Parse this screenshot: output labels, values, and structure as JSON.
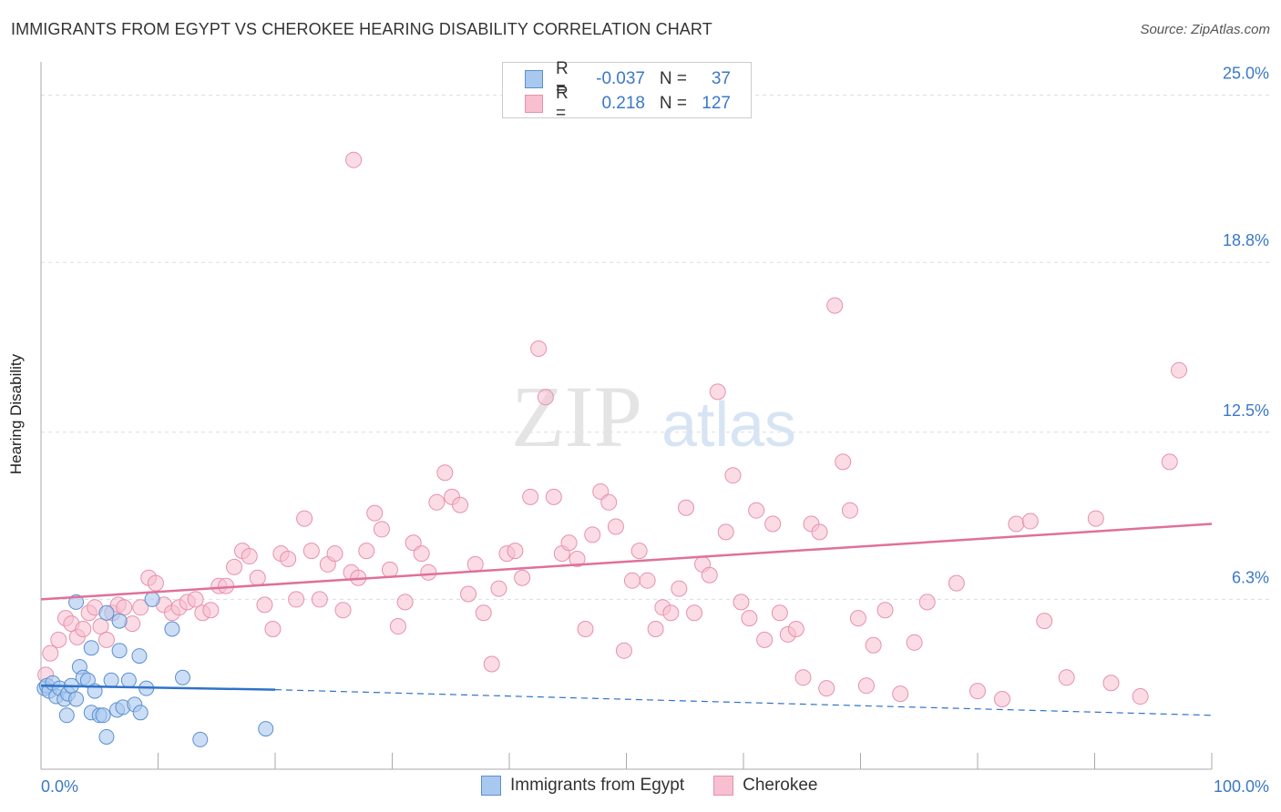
{
  "header": {
    "title": "IMMIGRANTS FROM EGYPT VS CHEROKEE HEARING DISABILITY CORRELATION CHART",
    "source": "Source: ZipAtlas.com"
  },
  "colors": {
    "egypt_fill": "#a9c8ef",
    "egypt_stroke": "#5b8fd0",
    "egypt_line": "#2f72c8",
    "cherokee_fill": "#f7bfd0",
    "cherokee_stroke": "#e691ad",
    "cherokee_line": "#e0709a",
    "value_text": "#3b78c8",
    "grid": "#dddddd"
  },
  "legend": {
    "rows": [
      {
        "r_label": "R =",
        "r_value": "-0.037",
        "n_label": "N =",
        "n_value": "37"
      },
      {
        "r_label": "R =",
        "r_value": "0.218",
        "n_label": "N =",
        "n_value": "127"
      }
    ]
  },
  "watermark": {
    "zip": "ZIP",
    "atlas": "atlas"
  },
  "chart_data": {
    "type": "scatter",
    "title": "IMMIGRANTS FROM EGYPT VS CHEROKEE HEARING DISABILITY CORRELATION CHART",
    "xlabel": "",
    "ylabel": "Hearing Disability",
    "xlim": [
      0,
      100
    ],
    "ylim": [
      0,
      26
    ],
    "x_tick_labels": [
      "0.0%",
      "100.0%"
    ],
    "y_ticks": [
      6.3,
      12.5,
      18.8,
      25.0
    ],
    "y_tick_labels": [
      "6.3%",
      "12.5%",
      "18.8%",
      "25.0%"
    ],
    "grid": true,
    "legend_position": "top-center",
    "series": [
      {
        "name": "Immigrants from Egypt",
        "r": -0.037,
        "n": 37,
        "trend": {
          "x0": 0,
          "y0": 3.1,
          "x1": 20,
          "y1": 2.95,
          "dashed_to_x": 100,
          "dashed_to_y": 2.0
        },
        "points": [
          [
            0.3,
            3.0
          ],
          [
            0.5,
            3.1
          ],
          [
            0.7,
            2.9
          ],
          [
            1.0,
            3.2
          ],
          [
            1.3,
            2.7
          ],
          [
            1.6,
            3.0
          ],
          [
            2.0,
            2.6
          ],
          [
            2.3,
            2.8
          ],
          [
            2.6,
            3.1
          ],
          [
            3.0,
            2.6
          ],
          [
            3.3,
            3.8
          ],
          [
            3.6,
            3.4
          ],
          [
            4.0,
            3.3
          ],
          [
            4.3,
            2.1
          ],
          [
            4.6,
            2.9
          ],
          [
            5.0,
            2.0
          ],
          [
            5.3,
            2.0
          ],
          [
            5.6,
            1.2
          ],
          [
            6.0,
            3.3
          ],
          [
            6.5,
            2.2
          ],
          [
            7.0,
            2.3
          ],
          [
            7.5,
            3.3
          ],
          [
            8.0,
            2.4
          ],
          [
            8.5,
            2.1
          ],
          [
            9.0,
            3.0
          ],
          [
            2.2,
            2.0
          ],
          [
            3.0,
            6.2
          ],
          [
            4.3,
            4.5
          ],
          [
            5.6,
            5.8
          ],
          [
            6.7,
            5.5
          ],
          [
            6.7,
            4.4
          ],
          [
            8.4,
            4.2
          ],
          [
            9.5,
            6.3
          ],
          [
            11.2,
            5.2
          ],
          [
            12.1,
            3.4
          ],
          [
            13.6,
            1.1
          ],
          [
            19.2,
            1.5
          ]
        ]
      },
      {
        "name": "Cherokee",
        "r": 0.218,
        "n": 127,
        "trend": {
          "x0": 0,
          "y0": 6.3,
          "x1": 100,
          "y1": 9.1
        },
        "points": [
          [
            0.4,
            3.5
          ],
          [
            0.8,
            4.3
          ],
          [
            1.5,
            4.8
          ],
          [
            2.1,
            5.6
          ],
          [
            2.6,
            5.4
          ],
          [
            3.1,
            4.9
          ],
          [
            3.6,
            5.2
          ],
          [
            4.1,
            5.8
          ],
          [
            4.6,
            6.0
          ],
          [
            5.1,
            5.3
          ],
          [
            5.6,
            4.8
          ],
          [
            6.1,
            5.8
          ],
          [
            6.6,
            6.1
          ],
          [
            7.1,
            6.0
          ],
          [
            7.8,
            5.4
          ],
          [
            8.5,
            6.0
          ],
          [
            9.2,
            7.1
          ],
          [
            9.8,
            6.9
          ],
          [
            10.5,
            6.1
          ],
          [
            11.2,
            5.8
          ],
          [
            11.8,
            6.0
          ],
          [
            12.5,
            6.2
          ],
          [
            13.2,
            6.3
          ],
          [
            13.8,
            5.8
          ],
          [
            14.5,
            5.9
          ],
          [
            15.2,
            6.8
          ],
          [
            15.8,
            6.8
          ],
          [
            16.5,
            7.5
          ],
          [
            17.2,
            8.1
          ],
          [
            17.8,
            7.9
          ],
          [
            18.5,
            7.1
          ],
          [
            19.1,
            6.1
          ],
          [
            19.8,
            5.2
          ],
          [
            20.5,
            8.0
          ],
          [
            21.1,
            7.8
          ],
          [
            21.8,
            6.3
          ],
          [
            22.5,
            9.3
          ],
          [
            23.1,
            8.1
          ],
          [
            23.8,
            6.3
          ],
          [
            24.5,
            7.6
          ],
          [
            25.1,
            8.0
          ],
          [
            25.8,
            5.9
          ],
          [
            26.5,
            7.3
          ],
          [
            27.1,
            7.1
          ],
          [
            27.8,
            8.1
          ],
          [
            28.5,
            9.5
          ],
          [
            29.1,
            8.9
          ],
          [
            29.8,
            7.4
          ],
          [
            30.5,
            5.3
          ],
          [
            31.1,
            6.2
          ],
          [
            31.8,
            8.4
          ],
          [
            32.5,
            8.0
          ],
          [
            33.1,
            7.3
          ],
          [
            33.8,
            9.9
          ],
          [
            34.5,
            11.0
          ],
          [
            35.1,
            10.1
          ],
          [
            35.8,
            9.8
          ],
          [
            36.5,
            6.5
          ],
          [
            37.1,
            7.6
          ],
          [
            37.8,
            5.8
          ],
          [
            38.5,
            3.9
          ],
          [
            39.1,
            6.7
          ],
          [
            39.8,
            8.0
          ],
          [
            40.5,
            8.1
          ],
          [
            41.1,
            7.1
          ],
          [
            41.8,
            10.1
          ],
          [
            42.5,
            15.6
          ],
          [
            43.1,
            13.8
          ],
          [
            43.8,
            10.1
          ],
          [
            44.5,
            8.0
          ],
          [
            45.1,
            8.4
          ],
          [
            45.8,
            7.8
          ],
          [
            46.5,
            5.2
          ],
          [
            47.1,
            8.7
          ],
          [
            47.8,
            10.3
          ],
          [
            48.5,
            9.9
          ],
          [
            49.1,
            9.0
          ],
          [
            49.8,
            4.4
          ],
          [
            50.5,
            7.0
          ],
          [
            51.1,
            8.1
          ],
          [
            51.8,
            7.0
          ],
          [
            52.5,
            5.2
          ],
          [
            53.1,
            6.0
          ],
          [
            53.8,
            5.8
          ],
          [
            54.5,
            6.7
          ],
          [
            55.1,
            9.7
          ],
          [
            55.8,
            5.8
          ],
          [
            56.5,
            7.6
          ],
          [
            57.1,
            7.2
          ],
          [
            57.8,
            14.0
          ],
          [
            58.5,
            8.8
          ],
          [
            59.1,
            10.9
          ],
          [
            59.8,
            6.2
          ],
          [
            60.5,
            5.6
          ],
          [
            61.1,
            9.6
          ],
          [
            61.8,
            4.8
          ],
          [
            62.5,
            9.1
          ],
          [
            63.1,
            5.8
          ],
          [
            63.8,
            5.0
          ],
          [
            64.5,
            5.2
          ],
          [
            65.1,
            3.4
          ],
          [
            65.8,
            9.1
          ],
          [
            66.5,
            8.8
          ],
          [
            67.1,
            3.0
          ],
          [
            67.8,
            17.2
          ],
          [
            68.5,
            11.4
          ],
          [
            69.1,
            9.6
          ],
          [
            69.8,
            5.6
          ],
          [
            70.5,
            3.1
          ],
          [
            71.1,
            4.6
          ],
          [
            72.1,
            5.9
          ],
          [
            73.4,
            2.8
          ],
          [
            74.6,
            4.7
          ],
          [
            75.7,
            6.2
          ],
          [
            78.2,
            6.9
          ],
          [
            80.0,
            2.9
          ],
          [
            82.1,
            2.6
          ],
          [
            83.3,
            9.1
          ],
          [
            84.5,
            9.2
          ],
          [
            85.7,
            5.5
          ],
          [
            87.6,
            3.4
          ],
          [
            90.1,
            9.3
          ],
          [
            91.4,
            3.2
          ],
          [
            93.9,
            2.7
          ],
          [
            96.4,
            11.4
          ],
          [
            97.2,
            14.8
          ],
          [
            26.7,
            22.6
          ]
        ]
      }
    ]
  },
  "bottom_legend": {
    "items": [
      {
        "label": "Immigrants from Egypt"
      },
      {
        "label": "Cherokee"
      }
    ]
  }
}
